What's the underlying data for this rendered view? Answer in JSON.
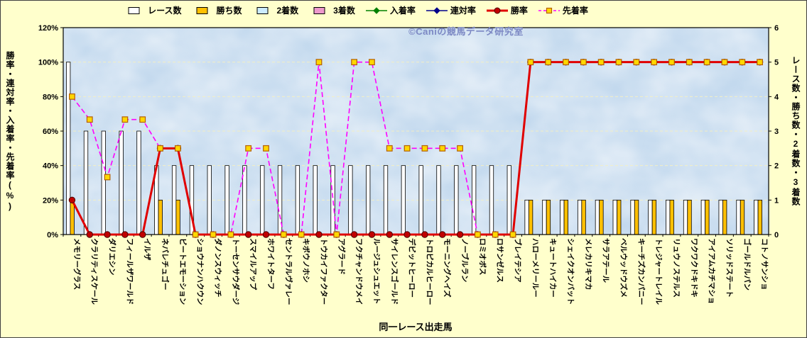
{
  "watermark": "©Caniの競馬データ研究室",
  "colors": {
    "background": "#FFFFCC",
    "plot_fill": "#C3D9EE",
    "grid": "#F5F0C2",
    "frame": "#000000"
  },
  "axes": {
    "left_ticks": [
      "0%",
      "20%",
      "40%",
      "60%",
      "80%",
      "100%",
      "120%"
    ],
    "right_ticks": [
      "0",
      "1",
      "2",
      "3",
      "4",
      "5",
      "6"
    ]
  },
  "chart_data": {
    "type": "bar",
    "subtype": "bar+line combo",
    "title": "",
    "xlabel": "同一レース出走馬",
    "ylabel_left": "勝率・連対率・入着率・先着率(%)",
    "ylabel_right": "レース数・勝ち数・2着数・3着数",
    "ylim_left": [
      0,
      120
    ],
    "ylim_right": [
      0,
      6
    ],
    "grid": "horizontal",
    "legend_position": "top",
    "categories": [
      "メモリーグラス",
      "クラリティスケール",
      "ダリエシン",
      "フィールザワールド",
      "イルザ",
      "ネバレチュゴー",
      "ビートエモーション",
      "ショウナンハクウン",
      "ダノンスウィッチ",
      "トーセンサウダージ",
      "スマイルアップ",
      "ホワイトターフ",
      "セントラルヴァレー",
      "キボウノホシ",
      "トウカイファクター",
      "アグラード",
      "フクチャンドウメイ",
      "ルージュシュエット",
      "サイレンスゴールド",
      "デビットヒーロー",
      "トロピカルヒーロー",
      "モーニングヘイズ",
      "ノーブルラン",
      "ロミオボス",
      "ロサンゼルス",
      "ブレイテシア",
      "ハローメリールー",
      "キュートハイカー",
      "シェイクオンバット",
      "メレカリキマカ",
      "サラアテール",
      "ベルウッドウズメ",
      "キーチズカンパニー",
      "トレジャートレイル",
      "リュウノステルス",
      "ワクワクドキドキ",
      "アイアムカチマショ",
      "ソリッドステート",
      "ゴールドルパン",
      "コトノサンショ"
    ],
    "series": [
      {
        "name": "レース数",
        "kind": "bar",
        "axis": "right",
        "color": "#FFFFFF",
        "values": [
          5,
          3,
          3,
          3,
          3,
          2,
          2,
          2,
          2,
          2,
          2,
          2,
          2,
          2,
          2,
          2,
          2,
          2,
          2,
          2,
          2,
          2,
          2,
          2,
          2,
          2,
          1,
          1,
          1,
          1,
          1,
          1,
          1,
          1,
          1,
          1,
          1,
          1,
          1,
          1
        ]
      },
      {
        "name": "勝ち数",
        "kind": "bar",
        "axis": "right",
        "color": "#FFC000",
        "values": [
          1,
          0,
          0,
          0,
          0,
          1,
          1,
          0,
          0,
          0,
          0,
          0,
          0,
          0,
          0,
          0,
          0,
          0,
          0,
          0,
          0,
          0,
          0,
          0,
          0,
          0,
          1,
          1,
          1,
          1,
          1,
          1,
          1,
          1,
          1,
          1,
          1,
          1,
          1,
          1
        ]
      },
      {
        "name": "2着数",
        "kind": "bar",
        "axis": "right",
        "color": "#CCECFF",
        "values": [
          0,
          0,
          0,
          0,
          0,
          0,
          0,
          0,
          0,
          0,
          0,
          0,
          0,
          0,
          0,
          0,
          0,
          0,
          0,
          0,
          0,
          0,
          0,
          0,
          0,
          0,
          0,
          0,
          0,
          0,
          0,
          0,
          0,
          0,
          0,
          0,
          0,
          0,
          0,
          0
        ]
      },
      {
        "name": "3着数",
        "kind": "bar",
        "axis": "right",
        "color": "#EE99CC",
        "values": [
          0,
          0,
          0,
          0,
          0,
          0,
          0,
          0,
          0,
          0,
          0,
          0,
          0,
          0,
          0,
          0,
          0,
          0,
          0,
          0,
          0,
          0,
          0,
          0,
          0,
          0,
          0,
          0,
          0,
          0,
          0,
          0,
          0,
          0,
          0,
          0,
          0,
          0,
          0,
          0
        ]
      },
      {
        "name": "入着率",
        "kind": "line",
        "axis": "left",
        "color": "#008000",
        "marker": "diamond",
        "marker_color": "#008000",
        "values": []
      },
      {
        "name": "連対率",
        "kind": "line",
        "axis": "left",
        "color": "#00008B",
        "marker": "diamond",
        "marker_color": "#00008B",
        "values": []
      },
      {
        "name": "勝率",
        "kind": "line",
        "axis": "left",
        "color": "#E00000",
        "line_width": 3,
        "marker": "circle",
        "marker_color": "#C00000",
        "values": [
          20,
          0,
          0,
          0,
          0,
          50,
          50,
          0,
          0,
          0,
          0,
          0,
          0,
          0,
          0,
          0,
          0,
          0,
          0,
          0,
          0,
          0,
          0,
          0,
          0,
          0,
          100,
          100,
          100,
          100,
          100,
          100,
          100,
          100,
          100,
          100,
          100,
          100,
          100,
          100
        ]
      },
      {
        "name": "先着率",
        "kind": "line",
        "axis": "left",
        "color": "#FF00FF",
        "dash": true,
        "marker": "square",
        "marker_color": "#FFD700",
        "values": [
          80,
          66.7,
          33.3,
          66.7,
          66.7,
          50,
          50,
          0,
          0,
          0,
          50,
          50,
          0,
          0,
          100,
          0,
          100,
          100,
          50,
          50,
          50,
          50,
          50,
          0,
          0,
          0,
          100,
          100,
          100,
          100,
          100,
          100,
          100,
          100,
          100,
          100,
          100,
          100,
          100,
          100
        ]
      }
    ]
  }
}
